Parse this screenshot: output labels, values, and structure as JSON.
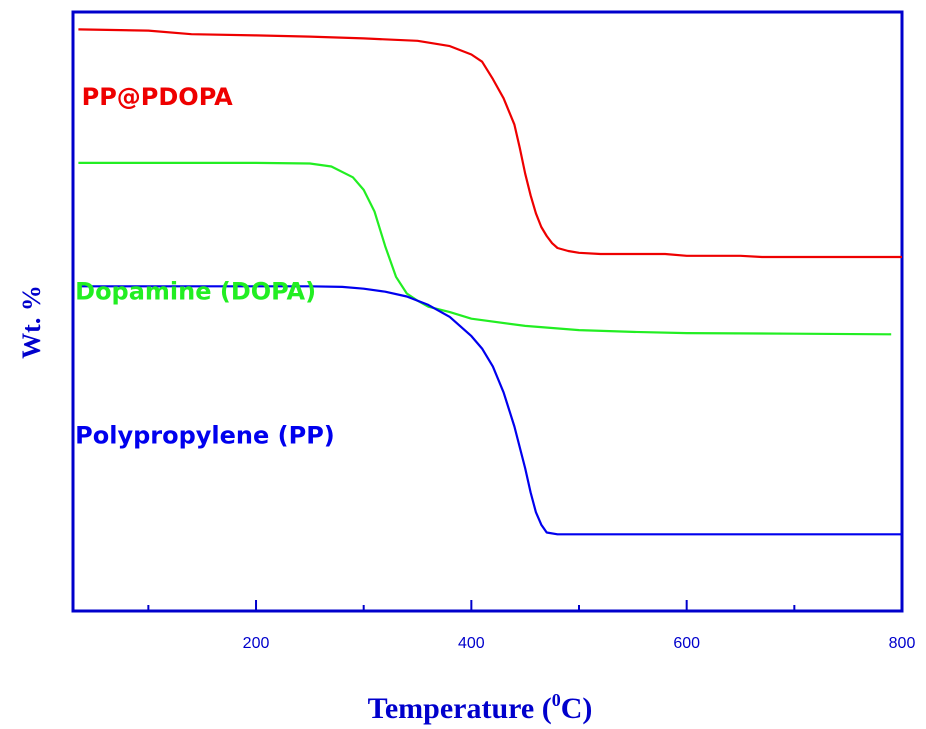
{
  "chart_data": {
    "type": "line",
    "title": "",
    "xlabel": "Temperature (",
    "xlabel_sup": "0",
    "xlabel_unit": "C)",
    "ylabel": "Wt. %",
    "xlim": [
      30,
      800
    ],
    "ylim": [
      0,
      100
    ],
    "xticks": [
      200,
      400,
      600,
      800
    ],
    "xticks_minor": [
      100,
      300,
      500,
      700
    ],
    "grid": false,
    "legend": "none",
    "axis_color": "#0000cc",
    "series": [
      {
        "name": "PP@PDOPA",
        "color": "#ee0000",
        "x": [
          35,
          100,
          140,
          200,
          250,
          300,
          350,
          380,
          400,
          410,
          420,
          430,
          440,
          445,
          450,
          455,
          460,
          465,
          470,
          475,
          480,
          490,
          500,
          520,
          550,
          580,
          600,
          650,
          670,
          700,
          750,
          800
        ],
        "y": [
          97.1,
          96.9,
          96.3,
          96.1,
          95.9,
          95.6,
          95.2,
          94.3,
          92.9,
          91.7,
          88.8,
          85.6,
          81.2,
          77.3,
          73.0,
          69.4,
          66.4,
          64.1,
          62.6,
          61.4,
          60.6,
          60.1,
          59.8,
          59.6,
          59.6,
          59.6,
          59.3,
          59.3,
          59.1,
          59.1,
          59.1,
          59.1
        ]
      },
      {
        "name": "Dopamine (DOPA)",
        "color": "#22ee22",
        "x": [
          35,
          100,
          200,
          250,
          270,
          290,
          300,
          310,
          320,
          330,
          340,
          350,
          360,
          380,
          400,
          450,
          500,
          550,
          600,
          700,
          790
        ],
        "y": [
          74.8,
          74.8,
          74.8,
          74.7,
          74.2,
          72.4,
          70.3,
          66.7,
          60.9,
          55.8,
          53.0,
          51.8,
          50.8,
          49.9,
          48.8,
          47.6,
          46.9,
          46.6,
          46.4,
          46.3,
          46.2
        ]
      },
      {
        "name": "Polypropylene (PP)",
        "color": "#0000ee",
        "x": [
          35,
          100,
          200,
          250,
          280,
          300,
          320,
          340,
          360,
          380,
          400,
          410,
          420,
          430,
          440,
          450,
          455,
          460,
          465,
          470,
          480,
          500,
          600,
          700,
          800
        ],
        "y": [
          54.2,
          54.2,
          54.2,
          54.2,
          54.1,
          53.8,
          53.3,
          52.5,
          51.1,
          49.1,
          45.9,
          43.8,
          40.8,
          36.5,
          30.8,
          23.8,
          19.8,
          16.5,
          14.4,
          13.1,
          12.8,
          12.8,
          12.8,
          12.8,
          12.8
        ]
      }
    ]
  }
}
